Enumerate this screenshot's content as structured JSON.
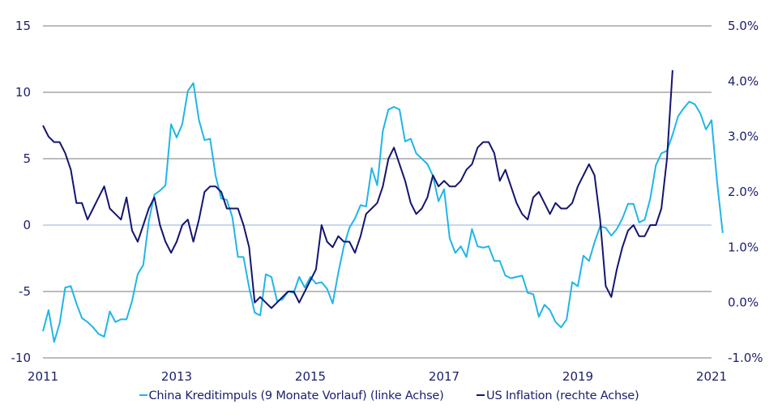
{
  "chart_data": {
    "type": "line",
    "title": "",
    "xlabel": "",
    "x_ticks": [
      "2011",
      "2013",
      "2015",
      "2017",
      "2019",
      "2021"
    ],
    "x_range": [
      2011,
      2021
    ],
    "y_left": {
      "ticks": [
        "15",
        "10",
        "5",
        "0",
        "-5",
        "-10"
      ],
      "range": [
        -10,
        15
      ]
    },
    "y_right": {
      "ticks": [
        "5.0%",
        "4.0%",
        "3.0%",
        "2.0%",
        "1.0%",
        "0.0%",
        "-1.0%"
      ],
      "range": [
        -1.0,
        5.0
      ]
    },
    "grid": true,
    "legend_position": "bottom",
    "series": [
      {
        "name": "China Kreditimpuls (9 Monate Vorlauf) (linke Achse)",
        "axis": "left",
        "color": "#1fb6e8",
        "start": 2011.0,
        "step_months": 1,
        "values": [
          -8.0,
          -6.4,
          -8.8,
          -7.4,
          -4.7,
          -4.6,
          -5.9,
          -7.0,
          -7.3,
          -7.7,
          -8.2,
          -8.4,
          -6.5,
          -7.3,
          -7.1,
          -7.1,
          -5.7,
          -3.7,
          -3.0,
          0.3,
          2.3,
          2.6,
          3.0,
          7.6,
          6.6,
          7.6,
          10.1,
          10.7,
          7.9,
          6.4,
          6.5,
          3.7,
          2.0,
          1.9,
          0.6,
          -2.4,
          -2.4,
          -4.7,
          -6.6,
          -6.8,
          -3.7,
          -3.9,
          -5.7,
          -5.6,
          -5.0,
          -5.1,
          -3.9,
          -4.7,
          -3.9,
          -4.4,
          -4.3,
          -4.8,
          -5.9,
          -3.6,
          -1.6,
          -0.2,
          0.5,
          1.5,
          1.4,
          4.3,
          3.0,
          7.1,
          8.7,
          8.9,
          8.7,
          6.3,
          6.5,
          5.4,
          5.0,
          4.6,
          3.7,
          1.8,
          2.7,
          -1.0,
          -2.1,
          -1.6,
          -2.4,
          -0.3,
          -1.6,
          -1.7,
          -1.6,
          -2.7,
          -2.7,
          -3.8,
          -4.0,
          -3.9,
          -3.8,
          -5.1,
          -5.2,
          -6.9,
          -6.0,
          -6.4,
          -7.3,
          -7.7,
          -7.1,
          -4.3,
          -4.6,
          -2.3,
          -2.7,
          -1.3,
          -0.1,
          -0.2,
          -0.8,
          -0.3,
          0.5,
          1.6,
          1.6,
          0.2,
          0.4,
          2.0,
          4.5,
          5.4,
          5.6,
          6.8,
          8.2,
          8.8,
          9.3,
          9.1,
          8.4,
          7.2,
          7.9,
          3.2,
          -0.6
        ]
      },
      {
        "name": "US Inflation (rechte Achse)",
        "axis": "right",
        "color": "#141570",
        "start": 2011.0,
        "step_months": 1,
        "values": [
          3.2,
          3.0,
          2.9,
          2.9,
          2.7,
          2.4,
          1.8,
          1.8,
          1.5,
          1.7,
          1.9,
          2.1,
          1.7,
          1.6,
          1.5,
          1.9,
          1.3,
          1.1,
          1.4,
          1.7,
          1.9,
          1.4,
          1.1,
          0.9,
          1.1,
          1.4,
          1.5,
          1.1,
          1.5,
          2.0,
          2.1,
          2.1,
          2.0,
          1.7,
          1.7,
          1.7,
          1.4,
          1.0,
          0.0,
          0.1,
          0.0,
          -0.1,
          0.0,
          0.1,
          0.2,
          0.2,
          0.0,
          0.2,
          0.4,
          0.6,
          1.4,
          1.1,
          1.0,
          1.2,
          1.1,
          1.1,
          0.9,
          1.2,
          1.6,
          1.7,
          1.8,
          2.1,
          2.6,
          2.8,
          2.5,
          2.2,
          1.8,
          1.6,
          1.7,
          1.9,
          2.3,
          2.1,
          2.2,
          2.1,
          2.1,
          2.2,
          2.4,
          2.5,
          2.8,
          2.9,
          2.9,
          2.7,
          2.2,
          2.4,
          2.1,
          1.8,
          1.6,
          1.5,
          1.9,
          2.0,
          1.8,
          1.6,
          1.8,
          1.7,
          1.7,
          1.8,
          2.1,
          2.3,
          2.5,
          2.3,
          1.5,
          0.3,
          0.1,
          0.6,
          1.0,
          1.3,
          1.4,
          1.2,
          1.2,
          1.4,
          1.4,
          1.7,
          2.6,
          4.2
        ]
      }
    ]
  },
  "legend": {
    "items": [
      {
        "label": "China Kreditimpuls (9 Monate Vorlauf) (linke Achse)",
        "color": "#1fb6e8"
      },
      {
        "label": "US Inflation (rechte Achse)",
        "color": "#141570"
      }
    ]
  }
}
